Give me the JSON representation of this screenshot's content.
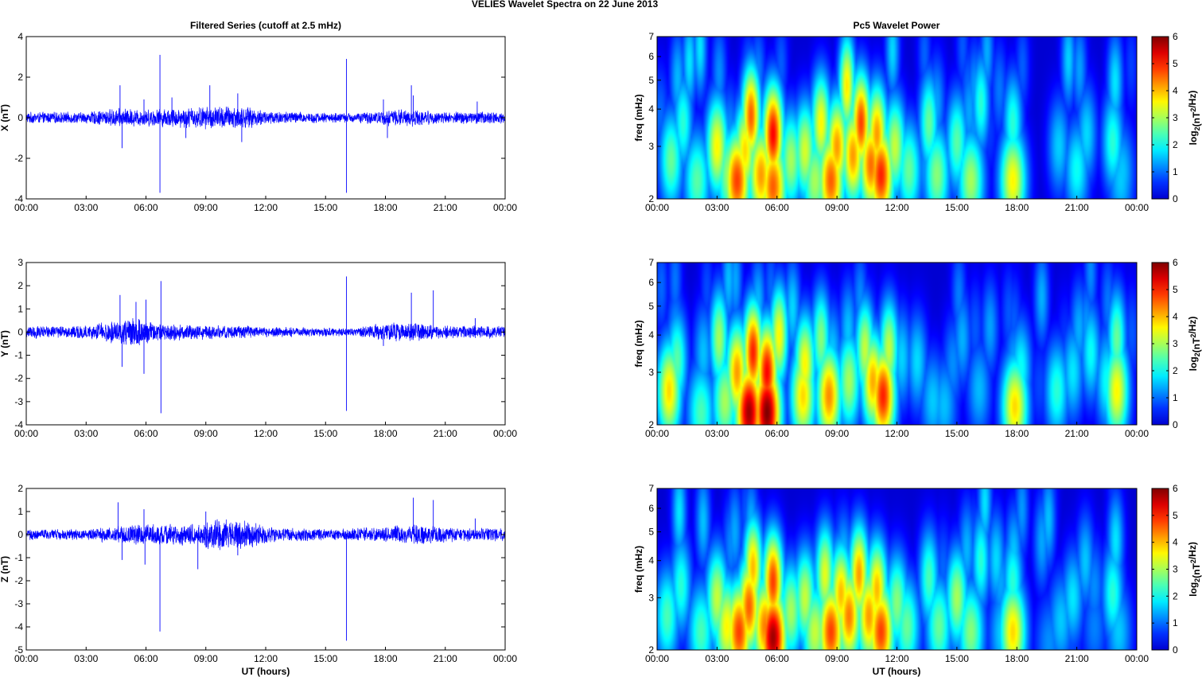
{
  "figure": {
    "title": "VELIES Wavelet Spectra on 22 June      2013",
    "left_title": "Filtered Series (cutoff at 2.5 mHz)",
    "right_title": "Pc5 Wavelet Power",
    "xlabel": "UT (hours)",
    "colors": {
      "trace": "#0000ff",
      "axis": "#000000",
      "background": "#ffffff"
    }
  },
  "chart_data": [
    {
      "type": "line",
      "ylabel": "X (nT)",
      "x_ticks": [
        "00:00",
        "03:00",
        "06:00",
        "09:00",
        "12:00",
        "15:00",
        "18:00",
        "21:00",
        "00:00"
      ],
      "xlim_hours": [
        0,
        24
      ],
      "ylim": [
        -4,
        4
      ],
      "y_ticks": [
        -4,
        -2,
        0,
        2,
        4
      ],
      "series": [
        {
          "envelope": [
            [
              0,
              0.3
            ],
            [
              3,
              0.3
            ],
            [
              4.5,
              0.5
            ],
            [
              6,
              0.45
            ],
            [
              9,
              0.6
            ],
            [
              10.5,
              0.65
            ],
            [
              12,
              0.4
            ],
            [
              14,
              0.3
            ],
            [
              16,
              0.25
            ],
            [
              17.7,
              0.35
            ],
            [
              18.2,
              0.45
            ],
            [
              19.3,
              0.45
            ],
            [
              21,
              0.3
            ],
            [
              22.5,
              0.35
            ],
            [
              24,
              0.3
            ]
          ],
          "spikes": [
            [
              4.7,
              1.6
            ],
            [
              4.8,
              -1.5
            ],
            [
              5.9,
              0.9
            ],
            [
              6.7,
              3.1
            ],
            [
              6.7,
              -3.7
            ],
            [
              7.3,
              1.0
            ],
            [
              8.0,
              -1.0
            ],
            [
              9.2,
              1.6
            ],
            [
              10.6,
              1.2
            ],
            [
              10.8,
              -1.2
            ],
            [
              16.05,
              2.9
            ],
            [
              16.05,
              -3.7
            ],
            [
              17.9,
              0.9
            ],
            [
              18.1,
              -1.0
            ],
            [
              19.3,
              1.6
            ],
            [
              19.4,
              1.1
            ],
            [
              22.6,
              0.8
            ]
          ]
        }
      ]
    },
    {
      "type": "line",
      "ylabel": "Y (nT)",
      "x_ticks": [
        "00:00",
        "03:00",
        "06:00",
        "09:00",
        "12:00",
        "15:00",
        "18:00",
        "21:00",
        "00:00"
      ],
      "xlim_hours": [
        0,
        24
      ],
      "ylim": [
        -4,
        3
      ],
      "y_ticks": [
        -4,
        -3,
        -2,
        -1,
        0,
        1,
        2,
        3
      ],
      "series": [
        {
          "envelope": [
            [
              0,
              0.3
            ],
            [
              3,
              0.3
            ],
            [
              4.5,
              0.55
            ],
            [
              5.5,
              0.75
            ],
            [
              6.5,
              0.4
            ],
            [
              9,
              0.35
            ],
            [
              12,
              0.25
            ],
            [
              15,
              0.2
            ],
            [
              16.5,
              0.2
            ],
            [
              17.8,
              0.4
            ],
            [
              18.2,
              0.45
            ],
            [
              19.3,
              0.45
            ],
            [
              21,
              0.3
            ],
            [
              22.5,
              0.3
            ],
            [
              24,
              0.3
            ]
          ],
          "spikes": [
            [
              4.7,
              1.6
            ],
            [
              4.8,
              -1.5
            ],
            [
              5.5,
              1.3
            ],
            [
              5.9,
              -1.8
            ],
            [
              6.0,
              1.4
            ],
            [
              6.75,
              2.2
            ],
            [
              6.75,
              -3.5
            ],
            [
              16.05,
              2.4
            ],
            [
              16.05,
              -3.4
            ],
            [
              17.9,
              -0.6
            ],
            [
              19.3,
              1.7
            ],
            [
              20.4,
              1.8
            ],
            [
              22.5,
              0.6
            ]
          ]
        }
      ]
    },
    {
      "type": "line",
      "ylabel": "Z (nT)",
      "x_ticks": [
        "00:00",
        "03:00",
        "06:00",
        "09:00",
        "12:00",
        "15:00",
        "18:00",
        "21:00",
        "00:00"
      ],
      "xlim_hours": [
        0,
        24
      ],
      "ylim": [
        -5,
        2
      ],
      "y_ticks": [
        -5,
        -4,
        -3,
        -2,
        -1,
        0,
        1,
        2
      ],
      "series": [
        {
          "envelope": [
            [
              0,
              0.25
            ],
            [
              3,
              0.25
            ],
            [
              4.5,
              0.4
            ],
            [
              6,
              0.5
            ],
            [
              8.5,
              0.5
            ],
            [
              9.5,
              0.75
            ],
            [
              11,
              0.65
            ],
            [
              12.5,
              0.35
            ],
            [
              15,
              0.25
            ],
            [
              17.8,
              0.35
            ],
            [
              18.5,
              0.4
            ],
            [
              19.3,
              0.5
            ],
            [
              21,
              0.35
            ],
            [
              24,
              0.3
            ]
          ],
          "spikes": [
            [
              4.6,
              1.4
            ],
            [
              4.8,
              -1.1
            ],
            [
              5.9,
              1.1
            ],
            [
              5.95,
              -1.3
            ],
            [
              6.7,
              -4.2
            ],
            [
              8.6,
              -1.5
            ],
            [
              9.0,
              1.0
            ],
            [
              10.6,
              -0.9
            ],
            [
              16.05,
              -4.6
            ],
            [
              19.4,
              1.6
            ],
            [
              20.4,
              1.5
            ],
            [
              22.5,
              0.7
            ]
          ]
        }
      ]
    },
    {
      "type": "heatmap",
      "ylabel": "freq (mHz)",
      "yscale": "log",
      "ylim": [
        2,
        7
      ],
      "y_ticks": [
        2,
        3,
        4,
        5,
        6,
        7
      ],
      "x_ticks": [
        "00:00",
        "03:00",
        "06:00",
        "09:00",
        "12:00",
        "15:00",
        "18:00",
        "21:00",
        "00:00"
      ],
      "xlim_hours": [
        0,
        24
      ],
      "colorbar": {
        "label": "log2(nT2/Hz)",
        "range": [
          0,
          6
        ],
        "ticks": [
          0,
          1,
          2,
          3,
          4,
          5,
          6
        ],
        "colormap": "jet"
      },
      "blobs": [
        [
          0.7,
          2.7,
          2.6
        ],
        [
          1.3,
          3.6,
          2.2
        ],
        [
          2.0,
          2.3,
          2.5
        ],
        [
          3.0,
          3.0,
          3.6
        ],
        [
          3.6,
          2.4,
          3.0
        ],
        [
          4.0,
          2.3,
          4.8
        ],
        [
          4.4,
          2.9,
          3.8
        ],
        [
          4.7,
          3.8,
          4.6
        ],
        [
          5.2,
          2.4,
          4.2
        ],
        [
          5.8,
          2.2,
          4.6
        ],
        [
          5.8,
          3.3,
          5.2
        ],
        [
          6.7,
          2.7,
          3.0
        ],
        [
          7.4,
          2.9,
          3.3
        ],
        [
          7.9,
          2.3,
          3.0
        ],
        [
          8.2,
          3.6,
          3.6
        ],
        [
          8.7,
          2.3,
          4.6
        ],
        [
          9.0,
          3.0,
          4.2
        ],
        [
          9.5,
          4.8,
          3.7
        ],
        [
          9.8,
          2.8,
          4.2
        ],
        [
          10.2,
          3.6,
          4.8
        ],
        [
          10.7,
          2.6,
          4.5
        ],
        [
          11.0,
          3.3,
          4.2
        ],
        [
          11.2,
          2.4,
          5.0
        ],
        [
          11.9,
          3.0,
          3.2
        ],
        [
          12.6,
          2.5,
          2.6
        ],
        [
          13.6,
          3.6,
          2.6
        ],
        [
          14.0,
          2.4,
          2.8
        ],
        [
          15.0,
          3.1,
          2.5
        ],
        [
          15.7,
          2.3,
          3.0
        ],
        [
          16.2,
          4.2,
          2.2
        ],
        [
          17.8,
          2.3,
          3.6
        ],
        [
          17.8,
          3.6,
          2.2
        ],
        [
          21.0,
          2.5,
          2.0
        ],
        [
          21.5,
          3.3,
          1.7
        ],
        [
          22.8,
          3.1,
          2.2
        ],
        [
          23.2,
          2.3,
          1.6
        ]
      ]
    },
    {
      "type": "heatmap",
      "ylabel": "freq (mHz)",
      "yscale": "log",
      "ylim": [
        2,
        7
      ],
      "y_ticks": [
        2,
        3,
        4,
        5,
        6,
        7
      ],
      "x_ticks": [
        "00:00",
        "03:00",
        "06:00",
        "09:00",
        "12:00",
        "15:00",
        "18:00",
        "21:00",
        "00:00"
      ],
      "xlim_hours": [
        0,
        24
      ],
      "colorbar": {
        "label": "log2(nT2/Hz)",
        "range": [
          0,
          6
        ],
        "ticks": [
          0,
          1,
          2,
          3,
          4,
          5,
          6
        ],
        "colormap": "jet"
      },
      "blobs": [
        [
          0.6,
          2.6,
          3.8
        ],
        [
          1.0,
          3.3,
          2.5
        ],
        [
          2.2,
          2.2,
          2.4
        ],
        [
          3.1,
          3.9,
          3.0
        ],
        [
          3.4,
          2.4,
          3.0
        ],
        [
          4.0,
          3.0,
          4.2
        ],
        [
          4.6,
          2.2,
          5.8
        ],
        [
          4.8,
          3.5,
          5.0
        ],
        [
          5.5,
          2.2,
          6.0
        ],
        [
          5.5,
          3.0,
          5.2
        ],
        [
          6.1,
          4.0,
          3.6
        ],
        [
          7.3,
          2.5,
          3.8
        ],
        [
          7.4,
          3.2,
          3.6
        ],
        [
          8.2,
          3.9,
          2.8
        ],
        [
          8.6,
          2.5,
          4.3
        ],
        [
          9.6,
          2.8,
          3.0
        ],
        [
          10.4,
          3.6,
          3.2
        ],
        [
          10.8,
          2.8,
          4.1
        ],
        [
          11.3,
          2.5,
          5.0
        ],
        [
          11.6,
          3.6,
          3.2
        ],
        [
          13.8,
          2.4,
          1.6
        ],
        [
          14.8,
          3.2,
          1.2
        ],
        [
          17.9,
          2.3,
          3.8
        ],
        [
          18.2,
          3.1,
          2.0
        ],
        [
          20.0,
          2.6,
          2.2
        ],
        [
          20.8,
          3.0,
          1.8
        ],
        [
          21.7,
          3.5,
          2.0
        ],
        [
          22.5,
          2.8,
          2.0
        ],
        [
          23.0,
          2.6,
          3.6
        ],
        [
          23.0,
          3.9,
          2.6
        ]
      ]
    },
    {
      "type": "heatmap",
      "ylabel": "freq (mHz)",
      "yscale": "log",
      "ylim": [
        2,
        7
      ],
      "y_ticks": [
        2,
        3,
        4,
        5,
        6,
        7
      ],
      "x_ticks": [
        "00:00",
        "03:00",
        "06:00",
        "09:00",
        "12:00",
        "15:00",
        "18:00",
        "21:00",
        "00:00"
      ],
      "xlim_hours": [
        0,
        24
      ],
      "colorbar": {
        "label": "log2(nT2/Hz)",
        "range": [
          0,
          6
        ],
        "ticks": [
          0,
          1,
          2,
          3,
          4,
          5,
          6
        ],
        "colormap": "jet"
      },
      "blobs": [
        [
          0.5,
          2.6,
          2.4
        ],
        [
          1.2,
          3.3,
          2.2
        ],
        [
          2.2,
          2.3,
          2.4
        ],
        [
          3.0,
          3.0,
          3.2
        ],
        [
          3.5,
          2.4,
          3.6
        ],
        [
          4.1,
          2.3,
          4.8
        ],
        [
          4.6,
          2.8,
          4.6
        ],
        [
          4.8,
          3.8,
          4.0
        ],
        [
          5.4,
          2.4,
          4.4
        ],
        [
          5.8,
          2.2,
          5.8
        ],
        [
          5.8,
          3.4,
          4.8
        ],
        [
          6.7,
          2.7,
          3.0
        ],
        [
          7.4,
          3.0,
          3.2
        ],
        [
          7.9,
          2.3,
          3.2
        ],
        [
          8.4,
          3.6,
          3.4
        ],
        [
          8.7,
          2.3,
          4.8
        ],
        [
          9.2,
          3.1,
          4.0
        ],
        [
          9.6,
          2.6,
          4.4
        ],
        [
          10.1,
          3.6,
          4.2
        ],
        [
          10.6,
          2.6,
          4.2
        ],
        [
          11.0,
          3.2,
          4.0
        ],
        [
          11.2,
          2.3,
          4.8
        ],
        [
          12.0,
          2.9,
          2.8
        ],
        [
          12.5,
          2.4,
          2.6
        ],
        [
          13.6,
          3.5,
          2.4
        ],
        [
          14.1,
          2.4,
          2.6
        ],
        [
          15.0,
          3.0,
          3.0
        ],
        [
          15.7,
          2.3,
          2.8
        ],
        [
          16.2,
          4.0,
          2.2
        ],
        [
          17.8,
          2.3,
          3.8
        ],
        [
          17.8,
          3.4,
          2.2
        ],
        [
          20.2,
          2.5,
          1.6
        ],
        [
          20.8,
          3.0,
          1.8
        ],
        [
          22.8,
          3.1,
          2.2
        ],
        [
          23.1,
          2.3,
          1.6
        ]
      ]
    }
  ]
}
